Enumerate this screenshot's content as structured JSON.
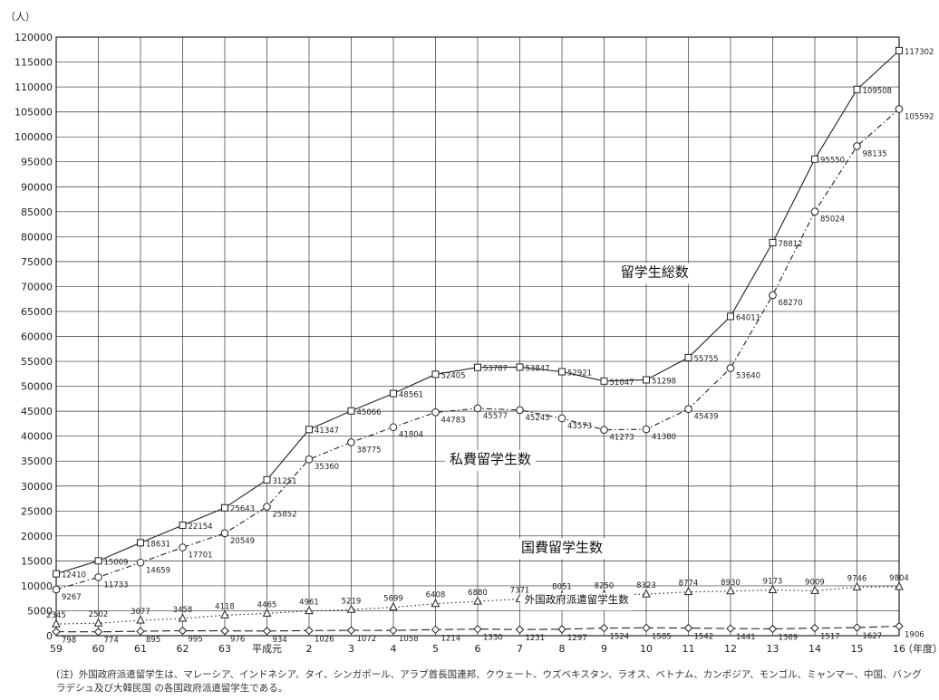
{
  "chart_data": {
    "type": "line",
    "ylabel": "（人）",
    "xlabel": "（年度）",
    "ylim": [
      0,
      120000
    ],
    "ytick_step": 5000,
    "grid": true,
    "categories": [
      "59",
      "60",
      "61",
      "62",
      "63",
      "平成元",
      "2",
      "3",
      "4",
      "5",
      "6",
      "7",
      "8",
      "9",
      "10",
      "11",
      "12",
      "13",
      "14",
      "15",
      "16"
    ],
    "series": [
      {
        "name": "留学生総数",
        "marker": "square",
        "dash": "solid",
        "values": [
          12410,
          15009,
          18631,
          22154,
          25643,
          31251,
          41347,
          45066,
          48561,
          52405,
          53787,
          53847,
          52921,
          51047,
          51298,
          55755,
          64011,
          78812,
          95550,
          109508,
          117302
        ],
        "labels": [
          "12410",
          "15009",
          "18631",
          "22154",
          "25643",
          "31251",
          "41347",
          "45066",
          "48561",
          "52405",
          "53787",
          "53847",
          "52921",
          "51047",
          "51298",
          "55755",
          "64011",
          "78812",
          "95550",
          "109508",
          "117302"
        ]
      },
      {
        "name": "私費留学生数",
        "marker": "circle",
        "dash": "dashdot",
        "values": [
          9267,
          11733,
          14659,
          17701,
          20549,
          25852,
          35360,
          38775,
          41804,
          44783,
          45577,
          45245,
          43573,
          41273,
          41380,
          45439,
          53640,
          68270,
          85024,
          98135,
          105592
        ],
        "labels": [
          "9267",
          "11733",
          "14659",
          "17701",
          "20549",
          "25852",
          "35360",
          "38775",
          "41804",
          "44783",
          "45577",
          "45245",
          "43573",
          "41273",
          "41380",
          "45439",
          "53640",
          "68270",
          "85024",
          "98135",
          "105592"
        ]
      },
      {
        "name": "国費留学生数",
        "marker": "triangle",
        "dash": "dotted",
        "values": [
          2345,
          2502,
          3077,
          3458,
          4118,
          4465,
          4961,
          5219,
          5699,
          6408,
          6880,
          7371,
          8051,
          8250,
          8323,
          8774,
          8930,
          9173,
          9009,
          9746,
          9804
        ],
        "labels": [
          "2345",
          "2502",
          "3077",
          "3458",
          "4118",
          "4465",
          "4961",
          "5219",
          "5699",
          "6408",
          "6880",
          "7371",
          "8051",
          "8250",
          "8323",
          "8774",
          "8930",
          "9173",
          "9009",
          "9746",
          "9804"
        ]
      },
      {
        "name": "外国政府派遣留学生数",
        "marker": "diamond",
        "dash": "longdash",
        "values": [
          798,
          774,
          895,
          995,
          976,
          934,
          1026,
          1072,
          1058,
          1214,
          1330,
          1231,
          1297,
          1524,
          1585,
          1542,
          1441,
          1369,
          1517,
          1627,
          1906
        ],
        "labels": [
          "798",
          "774",
          "895",
          "995",
          "976",
          "934",
          "1026",
          "1072",
          "1058",
          "1214",
          "1330",
          "1231",
          "1297",
          "1524",
          "1585",
          "1542",
          "1441",
          "1369",
          "1517",
          "1627",
          "1906"
        ]
      }
    ],
    "series_labels": [
      {
        "text": "留学生総数",
        "x_cat": 14.2,
        "y_val": 72000
      },
      {
        "text": "私費留学生数",
        "x_cat": 10.3,
        "y_val": 34500
      },
      {
        "text": "国費留学生数",
        "x_cat": 12.0,
        "y_val": 16800
      },
      {
        "text": "外国政府派遣留学生数",
        "x_cat": 12.35,
        "y_val": 6500
      }
    ]
  },
  "note": {
    "prefix": "(注)",
    "text": "外国政府派遣留学生は、マレーシア、インドネシア、タイ、シンガポール、アラブ首長国連邦、クウェート、ウズベキスタン、ラオス、ベトナム、カンボジア、モンゴル、ミャンマー、中国、バングラデシュ及び大韓民国 の各国政府派遣留学生である。"
  }
}
